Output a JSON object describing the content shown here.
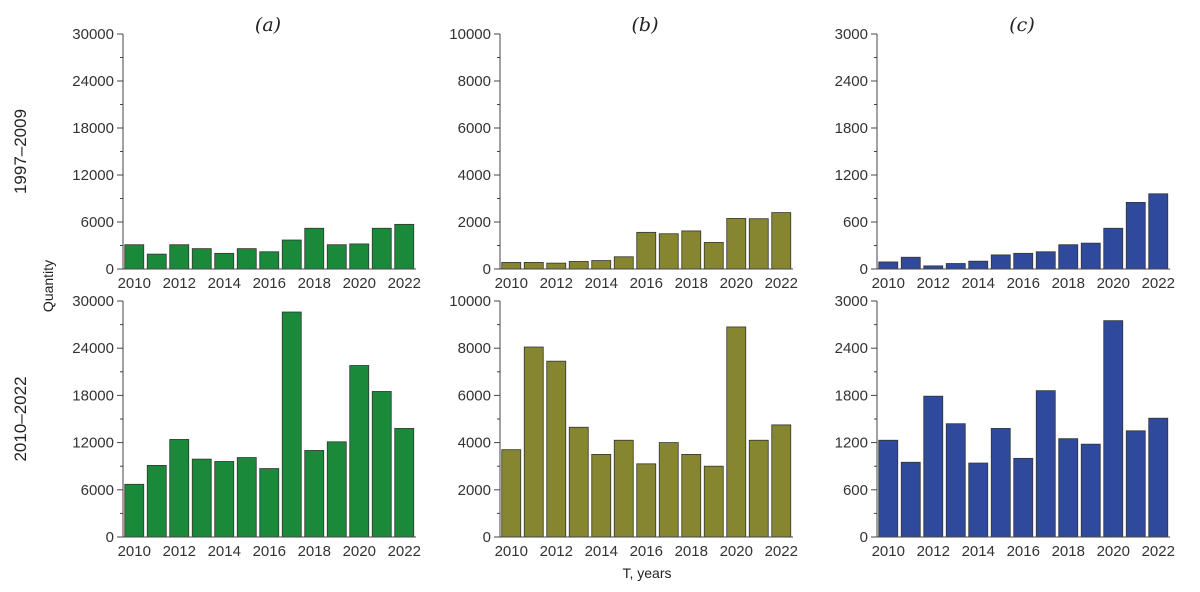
{
  "figure": {
    "ylabel": "Quantity",
    "xlabel": "T, years"
  },
  "colors": {
    "a": "#1a8a3a",
    "b": "#85862f",
    "c": "#2f4a9c",
    "axis": "#444444"
  },
  "chart_data": [
    {
      "id": "a-top",
      "type": "bar",
      "title": "(a)",
      "row_label": "1997–2009",
      "color_key": "a",
      "categories": [
        "2010",
        "2011",
        "2012",
        "2013",
        "2014",
        "2015",
        "2016",
        "2017",
        "2018",
        "2019",
        "2020",
        "2021",
        "2022"
      ],
      "values": [
        3100,
        1900,
        3100,
        2600,
        2000,
        2600,
        2200,
        3700,
        5200,
        3100,
        3200,
        5200,
        5700
      ],
      "ylim": [
        0,
        30000
      ],
      "yticks": [
        0,
        6000,
        12000,
        18000,
        24000,
        30000
      ],
      "xticks": [
        "2010",
        "2012",
        "2014",
        "2016",
        "2018",
        "2020",
        "2022"
      ]
    },
    {
      "id": "b-top",
      "type": "bar",
      "title": "(b)",
      "color_key": "b",
      "categories": [
        "2010",
        "2011",
        "2012",
        "2013",
        "2014",
        "2015",
        "2016",
        "2017",
        "2018",
        "2019",
        "2020",
        "2021",
        "2022"
      ],
      "values": [
        280,
        280,
        250,
        320,
        360,
        520,
        1560,
        1500,
        1620,
        1130,
        2150,
        2140,
        2400
      ],
      "ylim": [
        0,
        10000
      ],
      "yticks": [
        0,
        2000,
        4000,
        6000,
        8000,
        10000
      ],
      "xticks": [
        "2010",
        "2012",
        "2014",
        "2016",
        "2018",
        "2020",
        "2022"
      ]
    },
    {
      "id": "c-top",
      "type": "bar",
      "title": "(c)",
      "color_key": "c",
      "categories": [
        "2010",
        "2011",
        "2012",
        "2013",
        "2014",
        "2015",
        "2016",
        "2017",
        "2018",
        "2019",
        "2020",
        "2021",
        "2022"
      ],
      "values": [
        90,
        150,
        40,
        70,
        100,
        180,
        200,
        220,
        310,
        330,
        520,
        850,
        960
      ],
      "ylim": [
        0,
        3000
      ],
      "yticks": [
        0,
        600,
        1200,
        1800,
        2400,
        3000
      ],
      "xticks": [
        "2010",
        "2012",
        "2014",
        "2016",
        "2018",
        "2020",
        "2022"
      ]
    },
    {
      "id": "a-bottom",
      "type": "bar",
      "row_label": "2010–2022",
      "color_key": "a",
      "categories": [
        "2010",
        "2011",
        "2012",
        "2013",
        "2014",
        "2015",
        "2016",
        "2017",
        "2018",
        "2019",
        "2020",
        "2021",
        "2022"
      ],
      "values": [
        6700,
        9100,
        12400,
        9900,
        9600,
        10100,
        8700,
        28600,
        11000,
        12100,
        21800,
        18500,
        13800
      ],
      "ylim": [
        0,
        30000
      ],
      "yticks": [
        0,
        6000,
        12000,
        18000,
        24000,
        30000
      ],
      "xticks": [
        "2010",
        "2012",
        "2014",
        "2016",
        "2018",
        "2020",
        "2022"
      ]
    },
    {
      "id": "b-bottom",
      "type": "bar",
      "color_key": "b",
      "categories": [
        "2010",
        "2011",
        "2012",
        "2013",
        "2014",
        "2015",
        "2016",
        "2017",
        "2018",
        "2019",
        "2020",
        "2021",
        "2022"
      ],
      "values": [
        3700,
        8050,
        7450,
        4650,
        3500,
        4100,
        3100,
        4000,
        3500,
        3000,
        8900,
        4100,
        4750
      ],
      "ylim": [
        0,
        10000
      ],
      "yticks": [
        0,
        2000,
        4000,
        6000,
        8000,
        10000
      ],
      "xticks": [
        "2010",
        "2012",
        "2014",
        "2016",
        "2018",
        "2020",
        "2022"
      ]
    },
    {
      "id": "c-bottom",
      "type": "bar",
      "color_key": "c",
      "categories": [
        "2010",
        "2011",
        "2012",
        "2013",
        "2014",
        "2015",
        "2016",
        "2017",
        "2018",
        "2019",
        "2020",
        "2021",
        "2022"
      ],
      "values": [
        1230,
        950,
        1790,
        1440,
        940,
        1380,
        1000,
        1860,
        1250,
        1180,
        2750,
        1350,
        1510
      ],
      "ylim": [
        0,
        3000
      ],
      "yticks": [
        0,
        600,
        1200,
        1800,
        2400,
        3000
      ],
      "xticks": [
        "2010",
        "2012",
        "2014",
        "2016",
        "2018",
        "2020",
        "2022"
      ]
    }
  ]
}
